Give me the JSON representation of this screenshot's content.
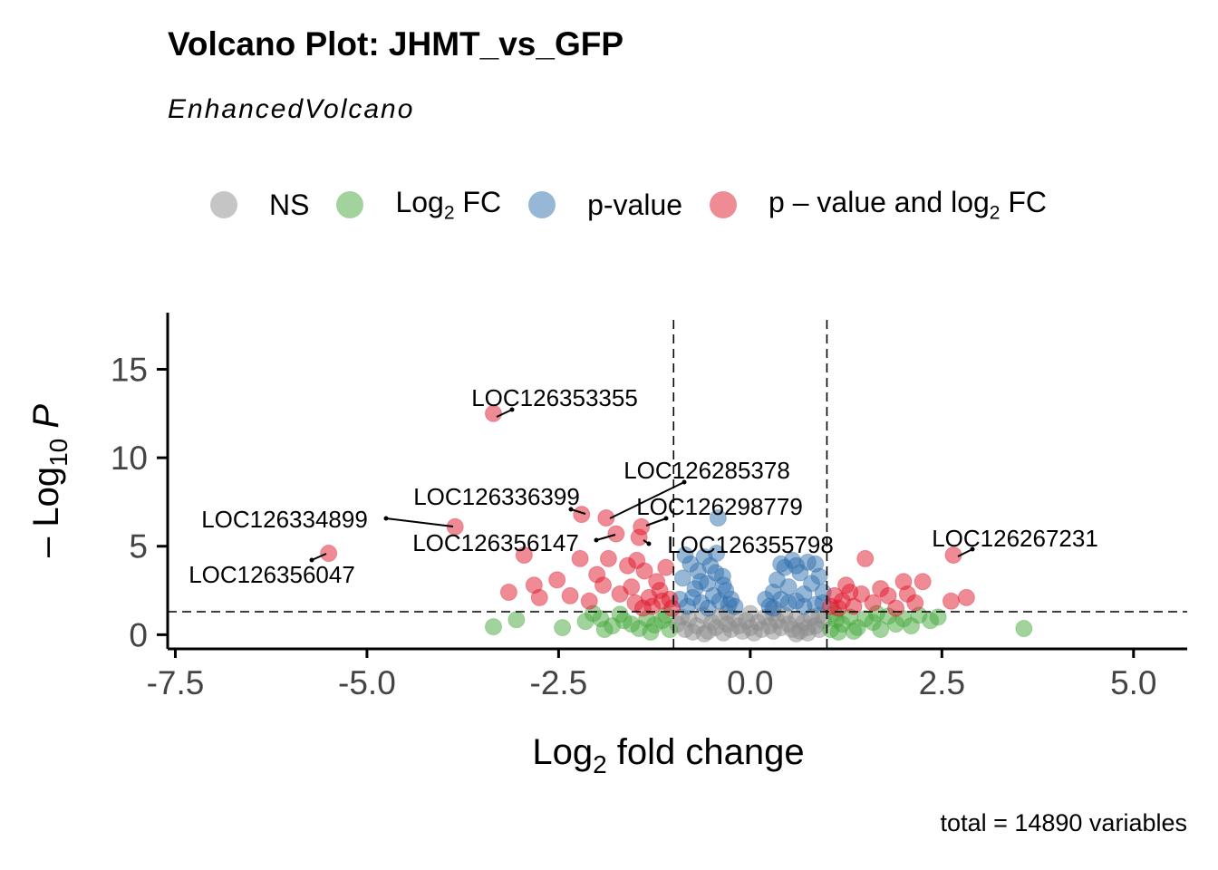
{
  "chart_data": {
    "type": "scatter",
    "title": "Volcano Plot: JHMT_vs_GFP",
    "subtitle": "EnhancedVolcano",
    "caption": "total = 14890 variables",
    "xlabel": "Log2 fold change",
    "ylabel": "-Log10 P",
    "xlabel_main": "Log",
    "xlabel_sub": "2",
    "xlabel_rest": " fold change",
    "ylabel_main": "– Log",
    "ylabel_sub": "10",
    "ylabel_rest": " P",
    "xlim": [
      -7.6,
      5.7
    ],
    "ylim": [
      -0.8,
      18.2
    ],
    "xticks": [
      -7.5,
      -5.0,
      -2.5,
      0.0,
      2.5,
      5.0
    ],
    "xtick_labels": [
      "-7.5",
      "-5.0",
      "-2.5",
      "0.0",
      "2.5",
      "5.0"
    ],
    "yticks": [
      0,
      5,
      10,
      15
    ],
    "ytick_labels": [
      "0",
      "5",
      "10",
      "15"
    ],
    "fc_cutoff": 1.0,
    "p_cutoff_log10": 1.3,
    "legend": [
      {
        "key": "NS",
        "label": "NS",
        "sub": "",
        "rest": "",
        "color": "#8c8c8c"
      },
      {
        "key": "FC",
        "label": "Log",
        "sub": "2",
        "rest": " FC",
        "color": "#45a83b"
      },
      {
        "key": "P",
        "label": "p-value",
        "sub": "",
        "rest": "",
        "color": "#2f6fae"
      },
      {
        "key": "FCP",
        "label": "p – value and log",
        "sub": "2",
        "rest": " FC",
        "color": "#e0182c"
      }
    ],
    "series": [
      {
        "name": "NS",
        "color": "#8c8c8c",
        "points": [
          [
            -0.95,
            0.6
          ],
          [
            -0.85,
            0.3
          ],
          [
            -0.8,
            0.9
          ],
          [
            -0.7,
            0.5
          ],
          [
            -0.62,
            1.1
          ],
          [
            -0.55,
            0.2
          ],
          [
            -0.5,
            0.7
          ],
          [
            -0.45,
            0.4
          ],
          [
            -0.4,
            1.0
          ],
          [
            -0.35,
            0.1
          ],
          [
            -0.3,
            0.6
          ],
          [
            -0.25,
            0.3
          ],
          [
            -0.2,
            0.9
          ],
          [
            -0.15,
            0.5
          ],
          [
            -0.1,
            0.2
          ],
          [
            -0.05,
            0.8
          ],
          [
            0.0,
            0.4
          ],
          [
            0.05,
            0.1
          ],
          [
            0.1,
            0.7
          ],
          [
            0.15,
            0.3
          ],
          [
            0.2,
            1.0
          ],
          [
            0.25,
            0.5
          ],
          [
            0.3,
            0.2
          ],
          [
            0.35,
            0.8
          ],
          [
            0.4,
            0.4
          ],
          [
            0.45,
            1.1
          ],
          [
            0.5,
            0.6
          ],
          [
            0.55,
            0.3
          ],
          [
            0.6,
            0.9
          ],
          [
            0.65,
            0.2
          ],
          [
            0.7,
            0.7
          ],
          [
            0.75,
            0.4
          ],
          [
            0.8,
            1.0
          ],
          [
            0.85,
            0.5
          ],
          [
            0.9,
            0.3
          ],
          [
            0.95,
            0.8
          ],
          [
            -0.6,
            0.05
          ],
          [
            0.6,
            0.05
          ],
          [
            0.0,
            1.2
          ],
          [
            -0.3,
            1.25
          ],
          [
            0.3,
            1.2
          ],
          [
            -0.9,
            1.0
          ],
          [
            0.9,
            1.1
          ],
          [
            -0.75,
            0.15
          ],
          [
            0.75,
            0.1
          ]
        ]
      },
      {
        "name": "Log2 FC",
        "color": "#45a83b",
        "points": [
          [
            -3.35,
            0.45
          ],
          [
            -3.05,
            0.85
          ],
          [
            -2.45,
            0.4
          ],
          [
            -2.15,
            0.75
          ],
          [
            -1.95,
            0.9
          ],
          [
            -1.8,
            0.5
          ],
          [
            -1.65,
            0.8
          ],
          [
            -1.55,
            0.6
          ],
          [
            -1.45,
            0.35
          ],
          [
            -1.35,
            0.9
          ],
          [
            -1.25,
            0.55
          ],
          [
            -1.15,
            0.8
          ],
          [
            -1.05,
            0.3
          ],
          [
            -1.1,
            1.1
          ],
          [
            -1.3,
            0.15
          ],
          [
            -1.7,
            1.15
          ],
          [
            -1.9,
            0.3
          ],
          [
            -2.05,
            1.2
          ],
          [
            1.05,
            0.3
          ],
          [
            1.12,
            0.85
          ],
          [
            1.2,
            0.6
          ],
          [
            1.3,
            1.0
          ],
          [
            1.4,
            0.4
          ],
          [
            1.5,
            0.9
          ],
          [
            1.6,
            0.7
          ],
          [
            1.7,
            0.3
          ],
          [
            1.8,
            1.05
          ],
          [
            1.9,
            0.6
          ],
          [
            2.0,
            0.9
          ],
          [
            2.1,
            0.5
          ],
          [
            2.2,
            1.1
          ],
          [
            2.35,
            0.8
          ],
          [
            2.45,
            1.0
          ],
          [
            1.15,
            0.15
          ],
          [
            1.35,
            0.2
          ],
          [
            1.65,
            1.2
          ],
          [
            1.1,
            1.2
          ],
          [
            3.57,
            0.35
          ]
        ]
      },
      {
        "name": "p-value",
        "color": "#2f6fae",
        "points": [
          [
            -0.92,
            2.0
          ],
          [
            -0.88,
            3.2
          ],
          [
            -0.82,
            1.6
          ],
          [
            -0.78,
            4.0
          ],
          [
            -0.72,
            2.6
          ],
          [
            -0.68,
            3.6
          ],
          [
            -0.64,
            1.8
          ],
          [
            -0.6,
            4.4
          ],
          [
            -0.56,
            2.9
          ],
          [
            -0.52,
            3.9
          ],
          [
            -0.48,
            2.2
          ],
          [
            -0.44,
            4.6
          ],
          [
            -0.4,
            1.9
          ],
          [
            -0.36,
            3.3
          ],
          [
            -0.32,
            2.5
          ],
          [
            -0.28,
            1.7
          ],
          [
            -0.85,
            4.5
          ],
          [
            -0.75,
            2.1
          ],
          [
            -0.65,
            3.0
          ],
          [
            -0.55,
            1.5
          ],
          [
            -0.45,
            3.5
          ],
          [
            -0.35,
            2.8
          ],
          [
            -0.25,
            2.0
          ],
          [
            -0.2,
            1.6
          ],
          [
            -0.42,
            6.6
          ],
          [
            0.25,
            1.6
          ],
          [
            0.3,
            2.4
          ],
          [
            0.35,
            3.1
          ],
          [
            0.4,
            2.0
          ],
          [
            0.45,
            3.8
          ],
          [
            0.5,
            2.7
          ],
          [
            0.55,
            4.2
          ],
          [
            0.6,
            1.9
          ],
          [
            0.65,
            3.5
          ],
          [
            0.7,
            2.3
          ],
          [
            0.75,
            4.1
          ],
          [
            0.8,
            2.9
          ],
          [
            0.85,
            1.7
          ],
          [
            0.9,
            3.3
          ],
          [
            0.95,
            2.4
          ],
          [
            0.3,
            1.5
          ],
          [
            0.4,
            4.0
          ],
          [
            0.5,
            1.8
          ],
          [
            0.6,
            3.9
          ],
          [
            0.7,
            1.6
          ],
          [
            0.85,
            4.0
          ],
          [
            0.95,
            1.8
          ],
          [
            0.2,
            2.0
          ]
        ]
      },
      {
        "name": "p-value and log2 FC",
        "color": "#e0182c",
        "points": [
          [
            -5.5,
            4.6
          ],
          [
            -3.35,
            12.5
          ],
          [
            -3.85,
            6.1
          ],
          [
            -2.2,
            6.8
          ],
          [
            -1.88,
            6.6
          ],
          [
            -1.42,
            6.1
          ],
          [
            -3.15,
            2.4
          ],
          [
            -2.95,
            4.5
          ],
          [
            -2.82,
            2.8
          ],
          [
            -2.75,
            2.1
          ],
          [
            -2.52,
            3.1
          ],
          [
            -2.35,
            2.2
          ],
          [
            -2.22,
            4.3
          ],
          [
            -2.1,
            1.9
          ],
          [
            -2.0,
            3.4
          ],
          [
            -1.92,
            2.8
          ],
          [
            -1.85,
            4.3
          ],
          [
            -1.75,
            5.7
          ],
          [
            -1.7,
            2.3
          ],
          [
            -1.6,
            3.9
          ],
          [
            -1.55,
            2.7
          ],
          [
            -1.48,
            4.2
          ],
          [
            -1.45,
            5.5
          ],
          [
            -1.38,
            3.6
          ],
          [
            -1.32,
            2.1
          ],
          [
            -1.28,
            1.6
          ],
          [
            -1.22,
            3.0
          ],
          [
            -1.18,
            2.5
          ],
          [
            -1.1,
            3.8
          ],
          [
            -1.05,
            2.0
          ],
          [
            -1.02,
            1.5
          ],
          [
            -1.5,
            1.8
          ],
          [
            -1.4,
            1.5
          ],
          [
            -1.15,
            1.9
          ],
          [
            1.05,
            1.6
          ],
          [
            1.1,
            2.2
          ],
          [
            1.2,
            1.9
          ],
          [
            1.3,
            2.4
          ],
          [
            1.45,
            2.3
          ],
          [
            1.5,
            4.3
          ],
          [
            1.6,
            1.8
          ],
          [
            1.7,
            2.6
          ],
          [
            1.8,
            2.2
          ],
          [
            2.0,
            3.0
          ],
          [
            2.05,
            2.3
          ],
          [
            2.15,
            1.8
          ],
          [
            2.25,
            3.0
          ],
          [
            2.62,
            1.9
          ],
          [
            2.65,
            4.5
          ],
          [
            2.82,
            2.1
          ],
          [
            1.15,
            1.5
          ],
          [
            1.35,
            1.6
          ],
          [
            1.9,
            1.5
          ],
          [
            1.25,
            2.8
          ]
        ]
      }
    ],
    "labels": [
      {
        "text": "LOC126353355",
        "x": -3.35,
        "y": 12.5
      },
      {
        "text": "LOC126285378",
        "x": -1.88,
        "y": 6.6
      },
      {
        "text": "LOC126336399",
        "x": -2.2,
        "y": 6.8
      },
      {
        "text": "LOC126298779",
        "x": -1.42,
        "y": 6.1
      },
      {
        "text": "LOC126334899",
        "x": -3.85,
        "y": 6.1
      },
      {
        "text": "LOC126356147",
        "x": -1.75,
        "y": 5.7
      },
      {
        "text": "LOC126355798",
        "x": -1.45,
        "y": 5.5
      },
      {
        "text": "LOC126267231",
        "x": 2.65,
        "y": 4.5
      },
      {
        "text": "LOC126356047",
        "x": -5.5,
        "y": 4.6
      }
    ]
  }
}
